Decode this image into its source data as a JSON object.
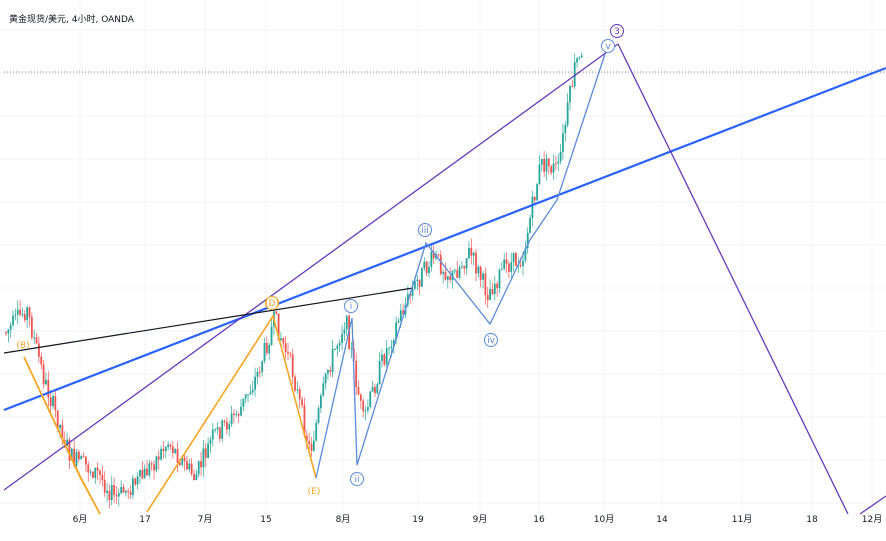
{
  "chart_data": {
    "type": "candlestick",
    "title": "黄金现货/美元, 4小时, OANDA",
    "x_tick_labels": [
      "6月",
      "17",
      "7月",
      "15",
      "8月",
      "19",
      "9月",
      "16",
      "10月",
      "14",
      "11月",
      "18",
      "12月"
    ],
    "grid": true,
    "colors": {
      "up": "#26a69a",
      "down": "#ef5350",
      "blue_line": "#2962ff",
      "purple_line": "#673ab7",
      "orange_path": "#f5a623",
      "black_line": "#131722",
      "wave_blue": "#5b8bd9"
    },
    "wave_labels": [
      "(B)",
      "(D)",
      "(E)",
      "i",
      "ii",
      "iii",
      "iv",
      "v",
      "3"
    ],
    "price_path": [
      [
        0.0,
        0.66
      ],
      [
        0.03,
        0.6
      ],
      [
        0.05,
        0.74
      ],
      [
        0.08,
        0.89
      ],
      [
        0.11,
        0.92
      ],
      [
        0.13,
        0.97
      ],
      [
        0.16,
        0.93
      ],
      [
        0.19,
        0.86
      ],
      [
        0.22,
        0.93
      ],
      [
        0.24,
        0.85
      ],
      [
        0.27,
        0.8
      ],
      [
        0.29,
        0.73
      ],
      [
        0.31,
        0.62
      ],
      [
        0.33,
        0.72
      ],
      [
        0.35,
        0.88
      ],
      [
        0.37,
        0.72
      ],
      [
        0.39,
        0.62
      ],
      [
        0.41,
        0.82
      ],
      [
        0.43,
        0.71
      ],
      [
        0.45,
        0.62
      ],
      [
        0.47,
        0.55
      ],
      [
        0.49,
        0.5
      ],
      [
        0.51,
        0.54
      ],
      [
        0.53,
        0.49
      ],
      [
        0.55,
        0.57
      ],
      [
        0.57,
        0.52
      ],
      [
        0.59,
        0.5
      ],
      [
        0.61,
        0.32
      ],
      [
        0.63,
        0.33
      ],
      [
        0.64,
        0.22
      ],
      [
        0.65,
        0.12
      ]
    ]
  }
}
